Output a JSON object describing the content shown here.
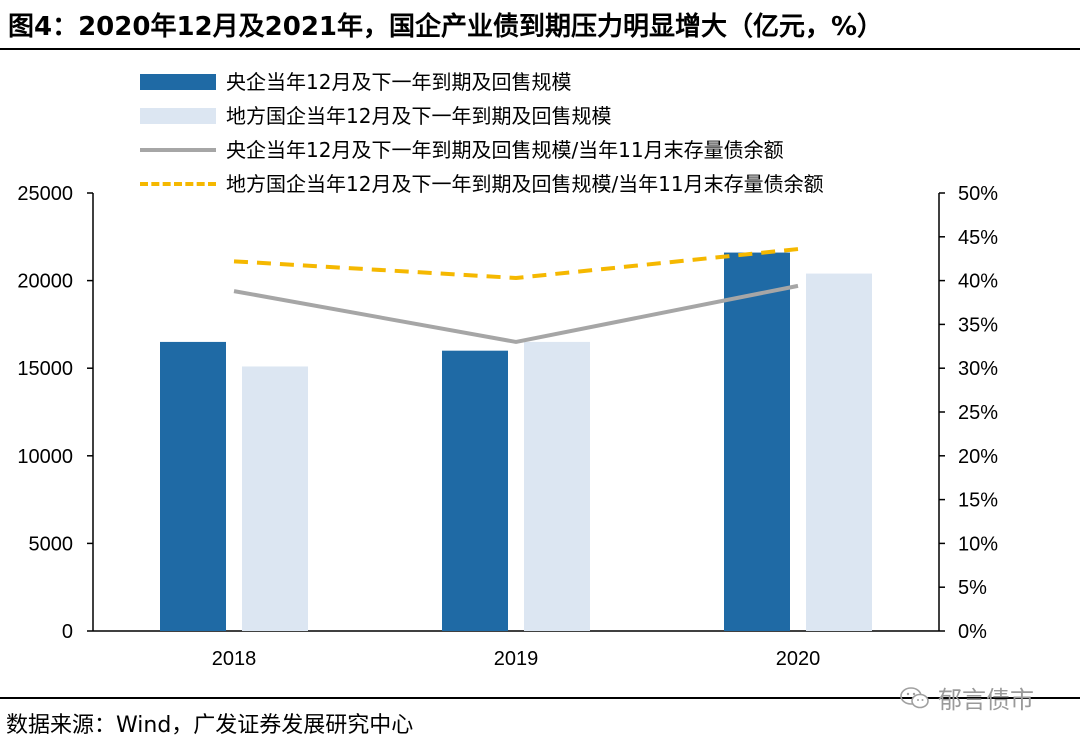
{
  "title": "图4：2020年12月及2021年，国企产业债到期压力明显增大（亿元，%）",
  "source": "数据来源：Wind，广发证券发展研究中心",
  "watermark": "郁言债市",
  "colors": {
    "central_bar": "#1f6aa5",
    "local_bar": "#dce6f2",
    "central_line": "#a6a6a6",
    "local_line": "#f5b800"
  },
  "chart_data": {
    "type": "bar",
    "categories": [
      "2018",
      "2019",
      "2020"
    ],
    "series": [
      {
        "name": "央企当年12月及下一年到期及回售规模",
        "kind": "bar",
        "axis": "left",
        "values": [
          16500,
          16000,
          21600
        ]
      },
      {
        "name": "地方国企当年12月及下一年到期及回售规模",
        "kind": "bar",
        "axis": "left",
        "values": [
          15100,
          16500,
          20400
        ]
      },
      {
        "name": "央企当年12月及下一年到期及回售规模/当年11月末存量债余额",
        "kind": "line",
        "axis": "right",
        "style": "solid",
        "values": [
          38.8,
          33.0,
          39.4
        ]
      },
      {
        "name": "地方国企当年12月及下一年到期及回售规模/当年11月末存量债余额",
        "kind": "line",
        "axis": "right",
        "style": "dashed",
        "values": [
          42.2,
          40.3,
          43.6
        ]
      }
    ],
    "y_left": {
      "ylim": [
        0,
        25000
      ],
      "ticks": [
        "0",
        "5000",
        "10000",
        "15000",
        "20000",
        "25000"
      ]
    },
    "y_right": {
      "ylim": [
        0,
        50
      ],
      "ticks": [
        "0%",
        "5%",
        "10%",
        "15%",
        "20%",
        "25%",
        "30%",
        "35%",
        "40%",
        "45%",
        "50%"
      ]
    },
    "legend_position": "top-left",
    "grid": false
  }
}
